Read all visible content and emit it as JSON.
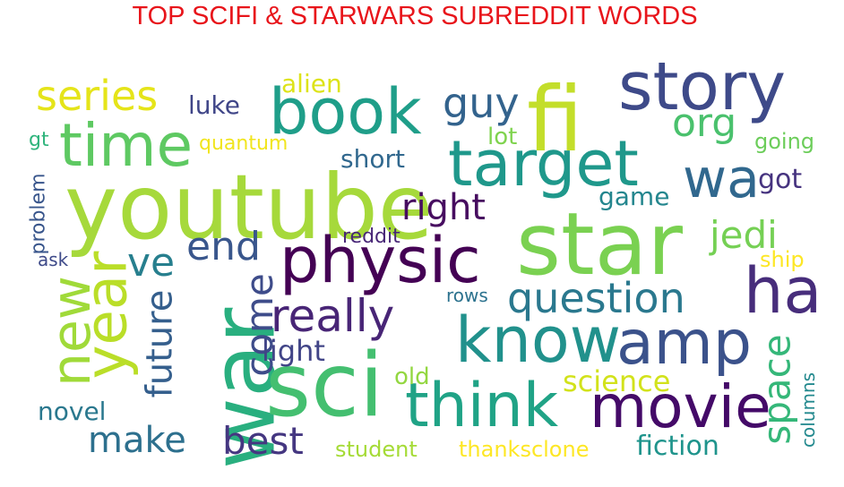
{
  "title": "TOP SCIFI & STARWARS SUBREDDIT WORDS",
  "words": [
    {
      "text": "youtube",
      "color": "#a6d93b"
    },
    {
      "text": "fi",
      "color": "#c3de2a"
    },
    {
      "text": "star",
      "color": "#7ad151"
    },
    {
      "text": "war",
      "color": "#29af7f"
    },
    {
      "text": "sci",
      "color": "#44bf70"
    },
    {
      "text": "story",
      "color": "#3e4a89"
    },
    {
      "text": "physic",
      "color": "#440154"
    },
    {
      "text": "target",
      "color": "#1f988b"
    },
    {
      "text": "book",
      "color": "#1f9e89"
    },
    {
      "text": "time",
      "color": "#5ec962"
    },
    {
      "text": "think",
      "color": "#20a386"
    },
    {
      "text": "movie",
      "color": "#440a68"
    },
    {
      "text": "know",
      "color": "#21918c"
    },
    {
      "text": "amp",
      "color": "#3b528b"
    },
    {
      "text": "ha",
      "color": "#472d7b"
    },
    {
      "text": "new",
      "color": "#a0da39"
    },
    {
      "text": "year",
      "color": "#bade28"
    },
    {
      "text": "wa",
      "color": "#31688e"
    },
    {
      "text": "really",
      "color": "#482576"
    },
    {
      "text": "question",
      "color": "#2a788e"
    },
    {
      "text": "series",
      "color": "#e5e419"
    },
    {
      "text": "guy",
      "color": "#33638d"
    },
    {
      "text": "org",
      "color": "#4ac16d"
    },
    {
      "text": "ve",
      "color": "#277f8e"
    },
    {
      "text": "end",
      "color": "#39568c"
    },
    {
      "text": "right",
      "color": "#470d60"
    },
    {
      "text": "jedi",
      "color": "#75d054"
    },
    {
      "text": "come",
      "color": "#3e4c8a"
    },
    {
      "text": "space",
      "color": "#35b779"
    },
    {
      "text": "future",
      "color": "#355f8d"
    },
    {
      "text": "make",
      "color": "#2d708e"
    },
    {
      "text": "best",
      "color": "#453781"
    },
    {
      "text": "luke",
      "color": "#404688"
    },
    {
      "text": "alien",
      "color": "#dde318"
    },
    {
      "text": "short",
      "color": "#31688e"
    },
    {
      "text": "lot",
      "color": "#7fd34e"
    },
    {
      "text": "gt",
      "color": "#2fb47c"
    },
    {
      "text": "quantum",
      "color": "#f1e51d"
    },
    {
      "text": "going",
      "color": "#6ccd5a"
    },
    {
      "text": "got",
      "color": "#46337f"
    },
    {
      "text": "game",
      "color": "#24868e"
    },
    {
      "text": "problem",
      "color": "#39568c"
    },
    {
      "text": "reddit",
      "color": "#482677"
    },
    {
      "text": "ask",
      "color": "#3e4a89"
    },
    {
      "text": "ship",
      "color": "#fde725"
    },
    {
      "text": "rows",
      "color": "#2c728e"
    },
    {
      "text": "light",
      "color": "#414487"
    },
    {
      "text": "science",
      "color": "#d2e21b"
    },
    {
      "text": "old",
      "color": "#93d741"
    },
    {
      "text": "novel",
      "color": "#2a788e"
    },
    {
      "text": "fiction",
      "color": "#1f948c"
    },
    {
      "text": "columns",
      "color": "#23898e"
    },
    {
      "text": "student",
      "color": "#a5db36"
    },
    {
      "text": "thanksclone",
      "color": "#fde725"
    }
  ]
}
